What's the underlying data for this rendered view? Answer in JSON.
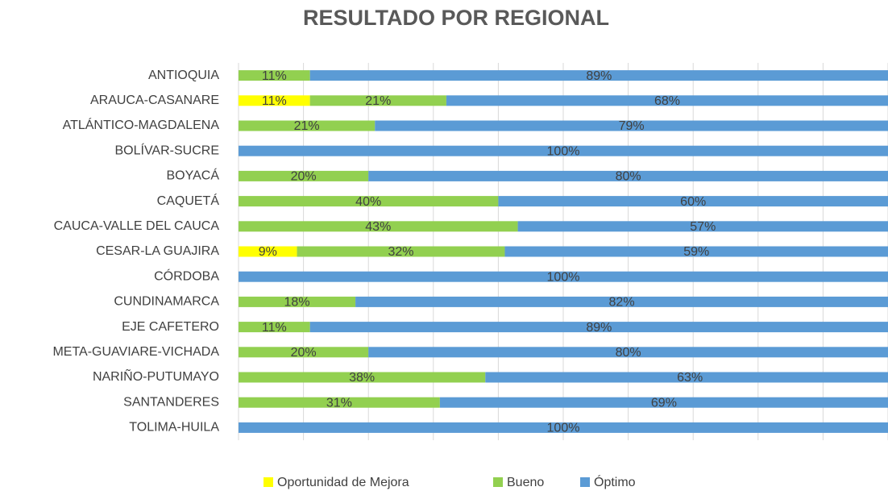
{
  "chart_data": {
    "type": "stacked_bar_horizontal",
    "title": "RESULTADO POR REGIONAL",
    "categories": [
      "ANTIOQUIA",
      "ARAUCA-CASANARE",
      "ATLÁNTICO-MAGDALENA",
      "BOLÍVAR-SUCRE",
      "BOYACÁ",
      "CAQUETÁ",
      "CAUCA-VALLE DEL CAUCA",
      "CESAR-LA GUAJIRA",
      "CÓRDOBA",
      "CUNDINAMARCA",
      "EJE CAFETERO",
      "META-GUAVIARE-VICHADA",
      "NARIÑO-PUTUMAYO",
      "SANTANDERES",
      "TOLIMA-HUILA"
    ],
    "series": [
      {
        "name": "Oportunidad de Mejora",
        "color": "#ffff00",
        "values": [
          null,
          11,
          null,
          null,
          null,
          null,
          null,
          9,
          null,
          null,
          null,
          null,
          null,
          null,
          null
        ],
        "value_labels": [
          null,
          "11%",
          null,
          null,
          null,
          null,
          null,
          "9%",
          null,
          null,
          null,
          null,
          null,
          null,
          null
        ]
      },
      {
        "name": "Bueno",
        "color": "#92d050",
        "values": [
          11,
          21,
          21,
          null,
          20,
          40,
          43,
          32,
          null,
          18,
          11,
          20,
          38,
          31,
          null
        ],
        "value_labels": [
          "11%",
          "21%",
          "21%",
          null,
          "20%",
          "40%",
          "43%",
          "32%",
          null,
          "18%",
          "11%",
          "20%",
          "38%",
          "31%",
          null
        ]
      },
      {
        "name": "Óptimo",
        "color": "#5b9bd5",
        "values": [
          89,
          68,
          79,
          100,
          80,
          60,
          57,
          59,
          100,
          82,
          89,
          80,
          63,
          69,
          100
        ],
        "value_labels": [
          "89%",
          "68%",
          "79%",
          "100%",
          "80%",
          "60%",
          "57%",
          "59%",
          "100%",
          "82%",
          "89%",
          "80%",
          "63%",
          "69%",
          "100%"
        ]
      }
    ],
    "xlim": [
      0,
      100
    ],
    "xticks": [
      0,
      10,
      20,
      30,
      40,
      50,
      60,
      70,
      80,
      90,
      100
    ],
    "grid": true,
    "legend": "bottom"
  }
}
